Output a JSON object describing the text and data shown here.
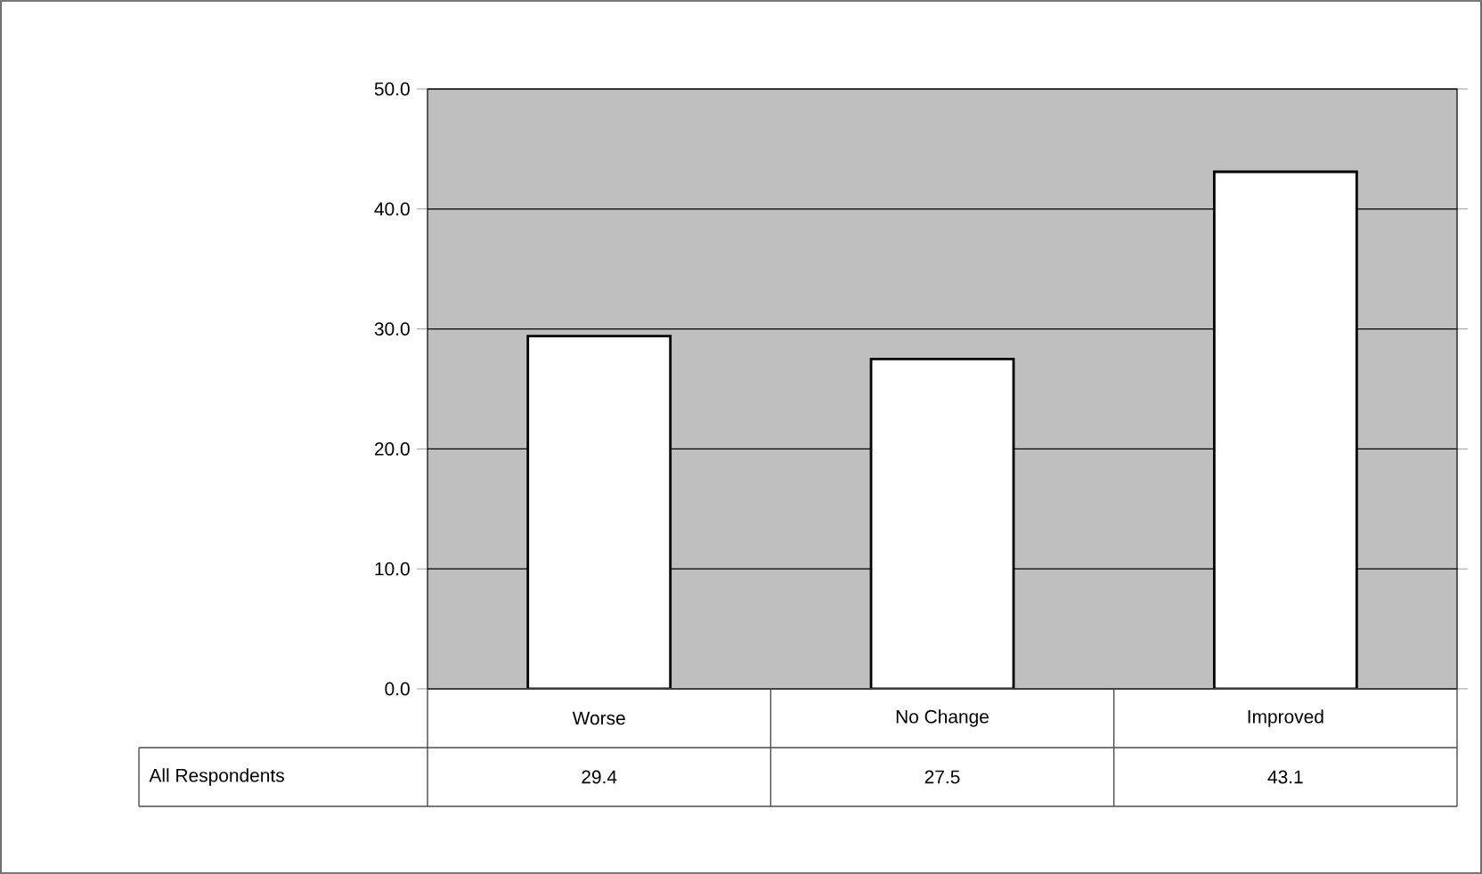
{
  "chart_data": {
    "type": "bar",
    "categories": [
      "Worse",
      "No Change",
      "Improved"
    ],
    "series": [
      {
        "name": "All Respondents",
        "color": "#ffffff",
        "values": [
          29.4,
          27.5,
          43.1
        ]
      }
    ],
    "ylim": [
      0,
      50
    ],
    "yticks": [
      {
        "value": 0,
        "label": "0.0"
      },
      {
        "value": 10,
        "label": "10.0"
      },
      {
        "value": 20,
        "label": "20.0"
      },
      {
        "value": 30,
        "label": "30.0"
      },
      {
        "value": 40,
        "label": "40.0"
      },
      {
        "value": 50,
        "label": "50.0"
      }
    ],
    "grid": "y",
    "data_labels": true
  }
}
